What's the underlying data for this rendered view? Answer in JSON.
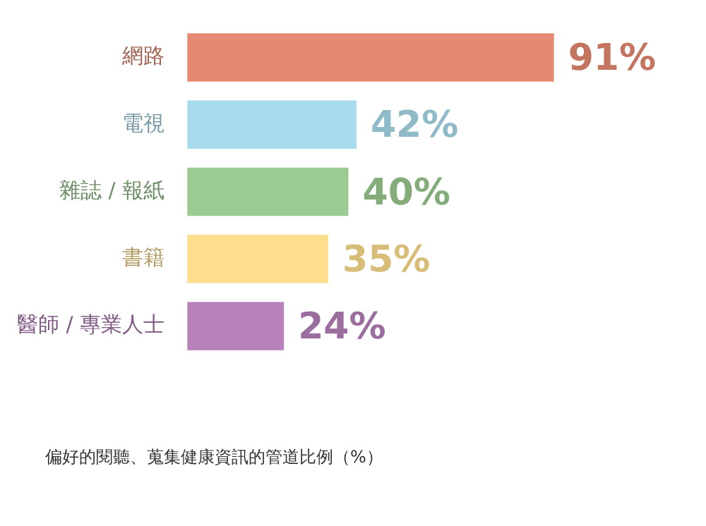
{
  "chart_data": {
    "type": "bar",
    "orientation": "horizontal",
    "categories": [
      "網路",
      "電視",
      "雜誌 / 報紙",
      "書籍",
      "醫師 / 專業人士"
    ],
    "values": [
      91,
      42,
      40,
      35,
      24
    ],
    "colors": [
      "#e58a70",
      "#a8dcec",
      "#9ccb92",
      "#fdde8d",
      "#b881bb"
    ],
    "value_labels": [
      "91%",
      "42%",
      "40%",
      "35%",
      "24%"
    ],
    "legend": false,
    "annotations": [
      "偏好的閱聽、蒐集健康資訊的管道比例（%）"
    ]
  }
}
